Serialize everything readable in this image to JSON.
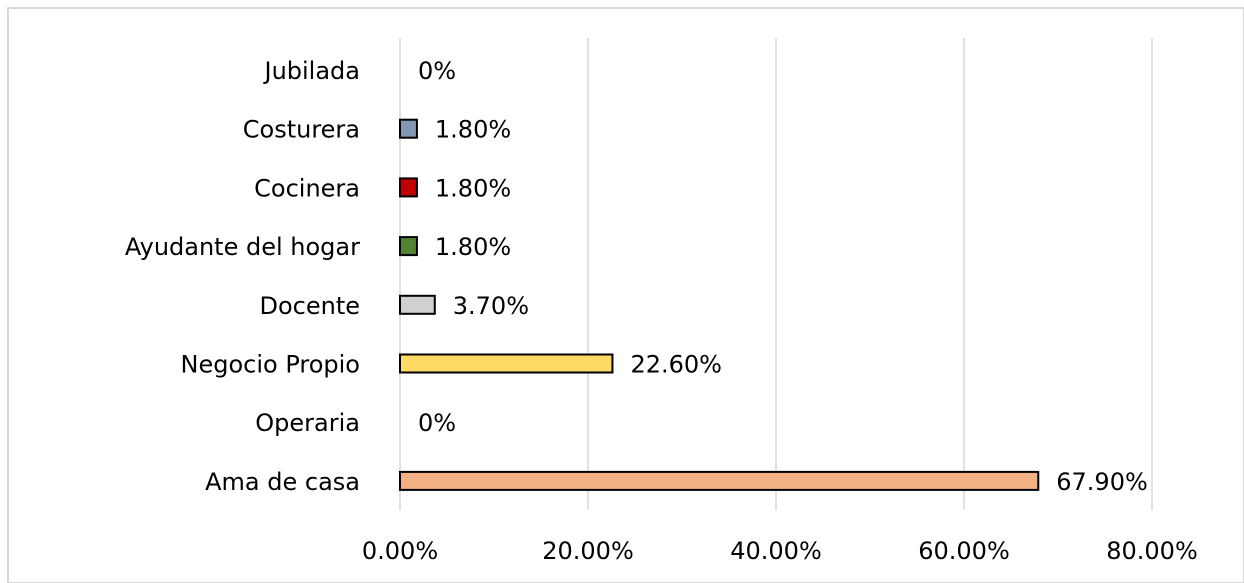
{
  "chart_data": {
    "type": "hbar",
    "categories": [
      "Jubilada",
      "Costurera",
      "Cocinera",
      "Ayudante del hogar",
      "Docente",
      "Negocio Propio",
      "Operaria",
      "Ama de casa"
    ],
    "values": [
      0,
      1.8,
      1.8,
      1.8,
      3.7,
      22.6,
      0,
      67.9
    ],
    "value_labels": [
      "0%",
      "1.80%",
      "1.80%",
      "1.80%",
      "3.70%",
      "22.60%",
      "0%",
      "67.90%"
    ],
    "colors": [
      null,
      "#8497b0",
      "#c00000",
      "#548235",
      "#d0d0d0",
      "#ffd966",
      null,
      "#f4b183"
    ],
    "xlim": [
      0,
      80
    ],
    "xticks": [
      {
        "value": 0,
        "label": "0.00%"
      },
      {
        "value": 20,
        "label": "20.00%"
      },
      {
        "value": 40,
        "label": "40.00%"
      },
      {
        "value": 60,
        "label": "60.00%"
      },
      {
        "value": 80,
        "label": "80.00%"
      }
    ],
    "grid": true
  }
}
